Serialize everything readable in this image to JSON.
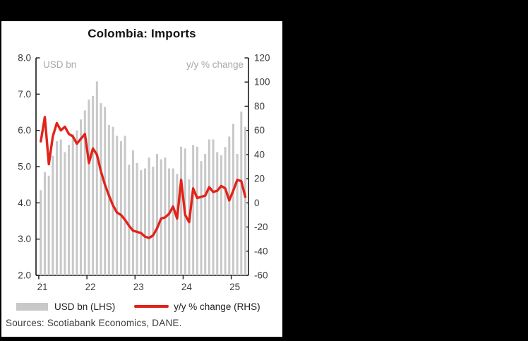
{
  "title": "Colombia: Imports",
  "in_plot_labels": {
    "left": "USD bn",
    "right": "y/y % change"
  },
  "legend": {
    "bar": {
      "label": "USD bn (LHS)",
      "color": "#c8c8c8"
    },
    "line": {
      "label": "y/y % change (RHS)",
      "color": "#e2231a"
    }
  },
  "sources": "Sources: Scotiabank Economics, DANE.",
  "colors": {
    "frame_background": "#000000",
    "panel_background": "#ffffff",
    "bar": "#c8c8c8",
    "line": "#e2231a",
    "axis": "#1a1a1a",
    "tick_text": "#3c3c3c",
    "in_plot_label_text": "#a9a9a9"
  },
  "chart_data": {
    "type": "bar",
    "subtype": "bar-plus-line-dual-axis",
    "title": "Colombia: Imports",
    "grid": false,
    "legend_position": "bottom",
    "x": [
      "2021-01",
      "2021-02",
      "2021-03",
      "2021-04",
      "2021-05",
      "2021-06",
      "2021-07",
      "2021-08",
      "2021-09",
      "2021-10",
      "2021-11",
      "2021-12",
      "2022-01",
      "2022-02",
      "2022-03",
      "2022-04",
      "2022-05",
      "2022-06",
      "2022-07",
      "2022-08",
      "2022-09",
      "2022-10",
      "2022-11",
      "2022-12",
      "2023-01",
      "2023-02",
      "2023-03",
      "2023-04",
      "2023-05",
      "2023-06",
      "2023-07",
      "2023-08",
      "2023-09",
      "2023-10",
      "2023-11",
      "2023-12",
      "2024-01",
      "2024-02",
      "2024-03",
      "2024-04",
      "2024-05",
      "2024-06",
      "2024-07",
      "2024-08",
      "2024-09",
      "2024-10",
      "2024-11",
      "2024-12",
      "2025-01",
      "2025-02",
      "2025-03",
      "2025-04"
    ],
    "series": [
      {
        "name": "USD bn (LHS)",
        "type": "bar",
        "axis": "left",
        "color": "#c8c8c8",
        "values": [
          4.35,
          4.85,
          4.75,
          5.3,
          5.7,
          5.75,
          5.4,
          5.6,
          5.9,
          6.0,
          6.3,
          6.55,
          6.85,
          6.95,
          7.35,
          6.75,
          6.65,
          6.15,
          6.1,
          5.85,
          5.7,
          5.85,
          5.05,
          5.45,
          5.1,
          4.9,
          4.95,
          5.25,
          5.0,
          5.35,
          5.2,
          5.25,
          4.95,
          4.95,
          4.8,
          5.55,
          5.5,
          4.65,
          5.6,
          5.55,
          5.15,
          5.35,
          5.75,
          5.75,
          5.4,
          5.31,
          5.54,
          5.83,
          6.18,
          5.35,
          6.52,
          6.1
        ]
      },
      {
        "name": "y/y % change (RHS)",
        "type": "line",
        "axis": "right",
        "color": "#e2231a",
        "values": [
          51,
          71,
          32,
          55,
          66,
          60,
          63,
          57,
          55,
          49,
          53,
          57,
          33,
          45,
          40,
          26,
          15,
          6,
          -2,
          -8,
          -10,
          -14,
          -19,
          -23,
          -24,
          -25,
          -28,
          -29,
          -27,
          -21,
          -13,
          -12,
          -9,
          -3,
          -13,
          19,
          -10,
          -16,
          12,
          4,
          5,
          6,
          13,
          9,
          10,
          14,
          12,
          2,
          10,
          19,
          18,
          5
        ]
      }
    ],
    "left_axis": {
      "label": "USD bn",
      "min": 2.0,
      "max": 8.0,
      "tick_interval": 1.0,
      "tick_labels": [
        "8.0",
        "7.0",
        "6.0",
        "5.0",
        "4.0",
        "3.0",
        "2.0"
      ]
    },
    "right_axis": {
      "label": "y/y % change",
      "min": -60,
      "max": 120,
      "tick_interval": 20,
      "tick_labels": [
        "120",
        "100",
        "80",
        "60",
        "40",
        "20",
        "0",
        "-20",
        "-40",
        "-60"
      ]
    },
    "x_axis": {
      "tick_labels": [
        "21",
        "22",
        "23",
        "24",
        "25"
      ],
      "months_per_tick": 12
    }
  }
}
